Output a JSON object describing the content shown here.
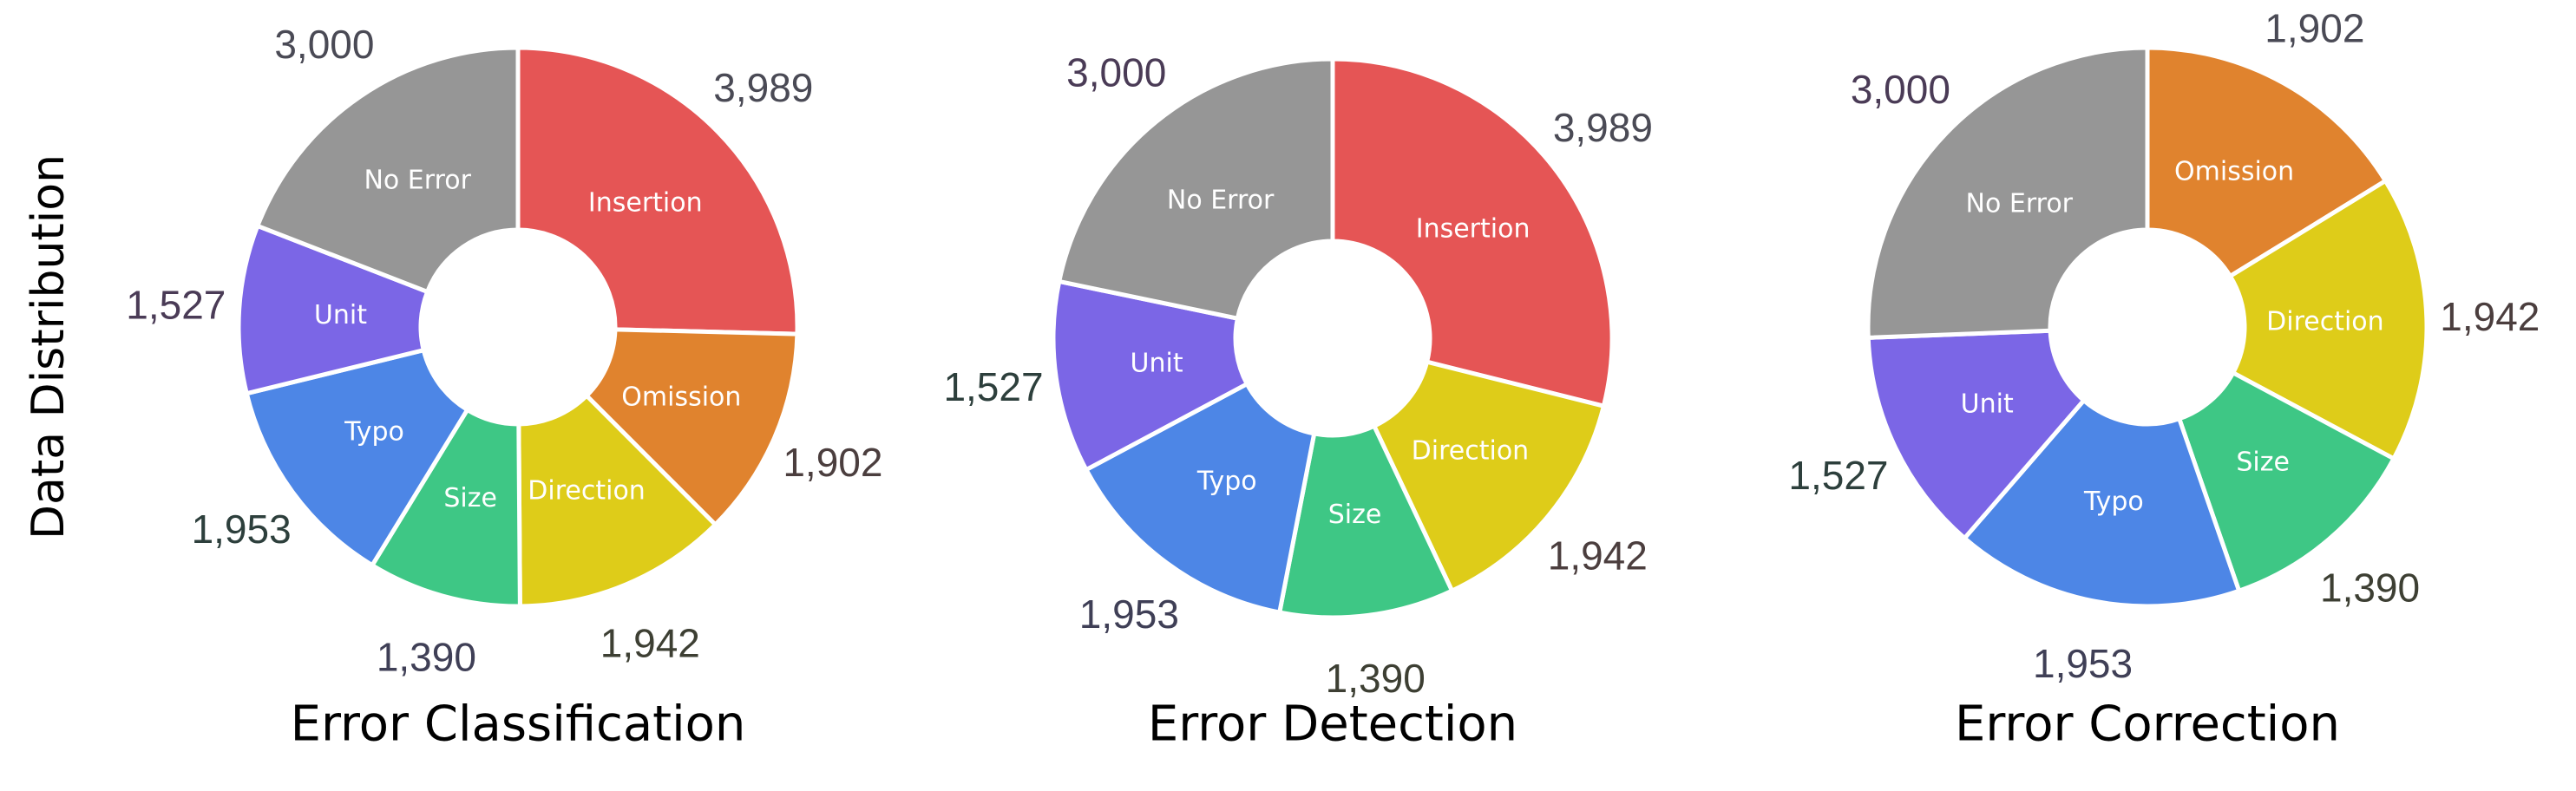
{
  "ylabel": "Data Distribution",
  "colors": {
    "No Error": "#969696",
    "Insertion": "#e55555",
    "Omission": "#e0832e",
    "Direction": "#decc19",
    "Size": "#3ec785",
    "Typo": "#4d86e6",
    "Unit": "#7b66e6"
  },
  "chart_data": [
    {
      "type": "pie",
      "title": "Error Classification",
      "categories": [
        "Insertion",
        "Omission",
        "Direction",
        "Size",
        "Typo",
        "Unit",
        "No Error"
      ],
      "values": [
        3989,
        1902,
        1942,
        1390,
        1953,
        1527,
        3000
      ],
      "value_labels": [
        "3,989",
        "1,902",
        "1,942",
        "1,390",
        "1,953",
        "1,527",
        "3,000"
      ]
    },
    {
      "type": "pie",
      "title": "Error Detection",
      "categories": [
        "Insertion",
        "Direction",
        "Size",
        "Typo",
        "Unit",
        "No Error"
      ],
      "values": [
        3989,
        1942,
        1390,
        1953,
        1527,
        3000
      ],
      "value_labels": [
        "3,989",
        "1,942",
        "1,390",
        "1,953",
        "1,527",
        "3,000"
      ]
    },
    {
      "type": "pie",
      "title": "Error Correction",
      "categories": [
        "Omission",
        "Direction",
        "Size",
        "Typo",
        "Unit",
        "No Error"
      ],
      "values": [
        1902,
        1942,
        1390,
        1953,
        1527,
        3000
      ],
      "value_labels": [
        "1,902",
        "1,942",
        "1,390",
        "1,953",
        "1,527",
        "3,000"
      ]
    }
  ]
}
